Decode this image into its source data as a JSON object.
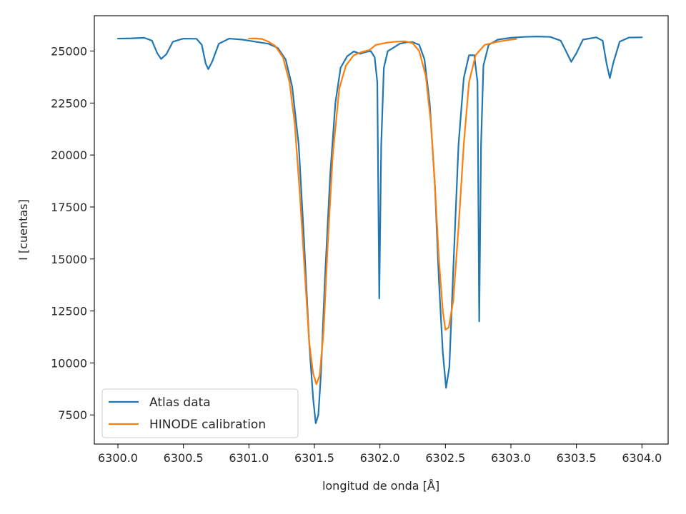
{
  "chart_data": {
    "type": "line",
    "xlabel": "longitud de onda [Å]",
    "ylabel": "I [cuentas]",
    "xlim": [
      6299.82,
      6304.2
    ],
    "ylim": [
      6100,
      26700
    ],
    "xticks": [
      6300.0,
      6300.5,
      6301.0,
      6301.5,
      6302.0,
      6302.5,
      6303.0,
      6303.5,
      6304.0
    ],
    "xtick_labels": [
      "6300.0",
      "6300.5",
      "6301.0",
      "6301.5",
      "6302.0",
      "6302.5",
      "6303.0",
      "6303.5",
      "6304.0"
    ],
    "yticks": [
      7500,
      10000,
      12500,
      15000,
      17500,
      20000,
      22500,
      25000
    ],
    "ytick_labels": [
      "7500",
      "10000",
      "12500",
      "15000",
      "17500",
      "20000",
      "22500",
      "25000"
    ],
    "grid": false,
    "legend": "bottom-left",
    "series": [
      {
        "name": "Atlas data",
        "color": "#1f77b4",
        "points": [
          [
            6300.0,
            25600
          ],
          [
            6300.1,
            25610
          ],
          [
            6300.2,
            25640
          ],
          [
            6300.26,
            25500
          ],
          [
            6300.3,
            24900
          ],
          [
            6300.33,
            24620
          ],
          [
            6300.37,
            24850
          ],
          [
            6300.42,
            25450
          ],
          [
            6300.5,
            25600
          ],
          [
            6300.6,
            25590
          ],
          [
            6300.64,
            25300
          ],
          [
            6300.67,
            24400
          ],
          [
            6300.69,
            24130
          ],
          [
            6300.72,
            24500
          ],
          [
            6300.77,
            25350
          ],
          [
            6300.85,
            25600
          ],
          [
            6300.95,
            25550
          ],
          [
            6301.05,
            25450
          ],
          [
            6301.15,
            25350
          ],
          [
            6301.22,
            25150
          ],
          [
            6301.28,
            24600
          ],
          [
            6301.33,
            23300
          ],
          [
            6301.38,
            20500
          ],
          [
            6301.42,
            16000
          ],
          [
            6301.46,
            11000
          ],
          [
            6301.49,
            8300
          ],
          [
            6301.51,
            7100
          ],
          [
            6301.53,
            7500
          ],
          [
            6301.55,
            9500
          ],
          [
            6301.58,
            14000
          ],
          [
            6301.62,
            19000
          ],
          [
            6301.66,
            22500
          ],
          [
            6301.7,
            24200
          ],
          [
            6301.75,
            24750
          ],
          [
            6301.8,
            24980
          ],
          [
            6301.85,
            24870
          ],
          [
            6301.89,
            24950
          ],
          [
            6301.93,
            25000
          ],
          [
            6301.96,
            24700
          ],
          [
            6301.98,
            23500
          ],
          [
            6301.995,
            13100
          ],
          [
            6302.01,
            20500
          ],
          [
            6302.03,
            24200
          ],
          [
            6302.06,
            25000
          ],
          [
            6302.1,
            25150
          ],
          [
            6302.15,
            25350
          ],
          [
            6302.2,
            25420
          ],
          [
            6302.25,
            25430
          ],
          [
            6302.3,
            25300
          ],
          [
            6302.34,
            24600
          ],
          [
            6302.38,
            22500
          ],
          [
            6302.42,
            18500
          ],
          [
            6302.45,
            14000
          ],
          [
            6302.48,
            10500
          ],
          [
            6302.505,
            8800
          ],
          [
            6302.53,
            9800
          ],
          [
            6302.56,
            14500
          ],
          [
            6302.6,
            20500
          ],
          [
            6302.64,
            23700
          ],
          [
            6302.68,
            24800
          ],
          [
            6302.72,
            24800
          ],
          [
            6302.745,
            23500
          ],
          [
            6302.758,
            12000
          ],
          [
            6302.772,
            20500
          ],
          [
            6302.79,
            24300
          ],
          [
            6302.83,
            25300
          ],
          [
            6302.9,
            25550
          ],
          [
            6303.0,
            25640
          ],
          [
            6303.1,
            25680
          ],
          [
            6303.2,
            25700
          ],
          [
            6303.3,
            25680
          ],
          [
            6303.38,
            25500
          ],
          [
            6303.42,
            25000
          ],
          [
            6303.46,
            24480
          ],
          [
            6303.5,
            24900
          ],
          [
            6303.55,
            25550
          ],
          [
            6303.65,
            25660
          ],
          [
            6303.7,
            25500
          ],
          [
            6303.73,
            24400
          ],
          [
            6303.755,
            23700
          ],
          [
            6303.78,
            24400
          ],
          [
            6303.83,
            25450
          ],
          [
            6303.9,
            25650
          ],
          [
            6304.0,
            25660
          ]
        ]
      },
      {
        "name": "HINODE calibration",
        "color": "#ff7f0e",
        "points": [
          [
            6301.0,
            25600
          ],
          [
            6301.05,
            25610
          ],
          [
            6301.1,
            25580
          ],
          [
            6301.15,
            25450
          ],
          [
            6301.2,
            25250
          ],
          [
            6301.26,
            24700
          ],
          [
            6301.31,
            23500
          ],
          [
            6301.35,
            21500
          ],
          [
            6301.39,
            18000
          ],
          [
            6301.43,
            14000
          ],
          [
            6301.46,
            11000
          ],
          [
            6301.49,
            9500
          ],
          [
            6301.515,
            8980
          ],
          [
            6301.54,
            9400
          ],
          [
            6301.57,
            11500
          ],
          [
            6301.6,
            15500
          ],
          [
            6301.64,
            20000
          ],
          [
            6301.69,
            23200
          ],
          [
            6301.74,
            24300
          ],
          [
            6301.8,
            24800
          ],
          [
            6301.86,
            24950
          ],
          [
            6301.92,
            25050
          ],
          [
            6301.97,
            25300
          ],
          [
            6302.05,
            25400
          ],
          [
            6302.12,
            25450
          ],
          [
            6302.19,
            25470
          ],
          [
            6302.25,
            25380
          ],
          [
            6302.3,
            25000
          ],
          [
            6302.35,
            23800
          ],
          [
            6302.39,
            21500
          ],
          [
            6302.42,
            18500
          ],
          [
            6302.45,
            15000
          ],
          [
            6302.48,
            12500
          ],
          [
            6302.5,
            11600
          ],
          [
            6302.525,
            11700
          ],
          [
            6302.56,
            13000
          ],
          [
            6302.6,
            16500
          ],
          [
            6302.64,
            20500
          ],
          [
            6302.68,
            23500
          ],
          [
            6302.73,
            24800
          ],
          [
            6302.8,
            25300
          ],
          [
            6302.9,
            25450
          ],
          [
            6303.0,
            25550
          ],
          [
            6303.04,
            25580
          ]
        ]
      }
    ]
  }
}
